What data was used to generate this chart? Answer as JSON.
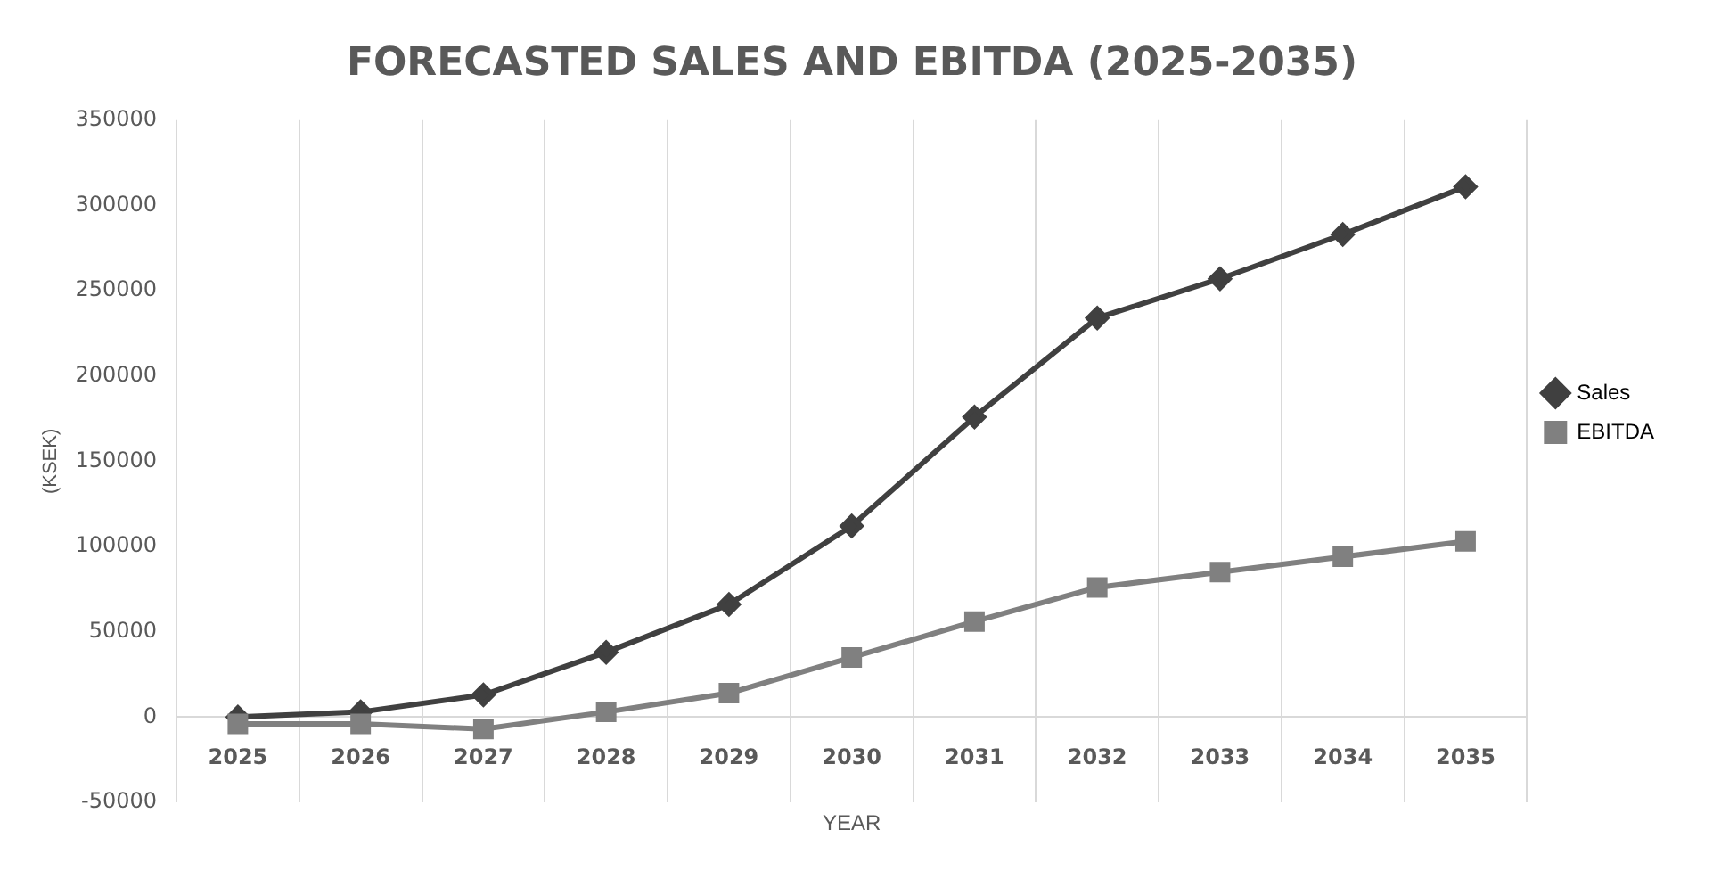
{
  "chart_data": {
    "type": "line",
    "title": "FORECASTED SALES AND EBITDA (2025-2035)",
    "xlabel": "YEAR",
    "ylabel": "(KSEK)",
    "categories": [
      "2025",
      "2026",
      "2027",
      "2028",
      "2029",
      "2030",
      "2031",
      "2032",
      "2033",
      "2034",
      "2035"
    ],
    "series": [
      {
        "name": "Sales",
        "color": "#404040",
        "marker": "diamond",
        "values": [
          0,
          3000,
          13000,
          38000,
          66000,
          112000,
          176000,
          234000,
          257000,
          283000,
          311000
        ]
      },
      {
        "name": "EBITDA",
        "color": "#808080",
        "marker": "square",
        "values": [
          -4000,
          -4000,
          -7000,
          3000,
          14000,
          35000,
          56000,
          76000,
          85000,
          94000,
          103000
        ]
      }
    ],
    "ylim": [
      -50000,
      350000
    ],
    "yticks": [
      -50000,
      0,
      50000,
      100000,
      150000,
      200000,
      250000,
      300000,
      350000
    ],
    "grid": "x",
    "legend": "right",
    "line_style": "solid"
  }
}
